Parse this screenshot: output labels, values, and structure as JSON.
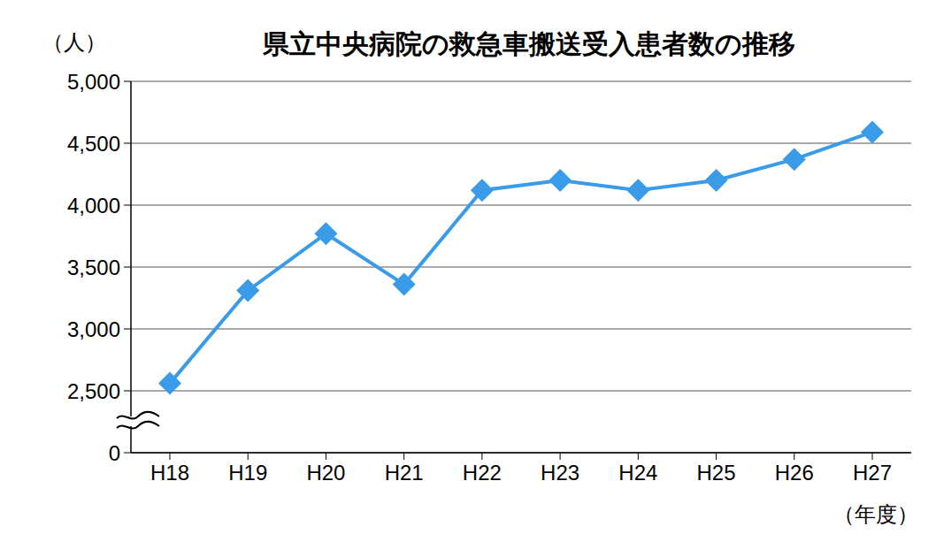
{
  "chart_data": {
    "type": "line",
    "title": "県立中央病院の救急車搬送受入患者数の推移",
    "y_label": "（人）",
    "x_label": "（年度）",
    "categories": [
      "H18",
      "H19",
      "H20",
      "H21",
      "H22",
      "H23",
      "H24",
      "H25",
      "H26",
      "H27"
    ],
    "values": [
      2560,
      3310,
      3770,
      3360,
      4120,
      4200,
      4120,
      4200,
      4370,
      4590
    ],
    "color": "#3a9be8",
    "marker": "diamond",
    "ylim": [
      0,
      5000
    ],
    "yticks": [
      0,
      {
        "value": 2500,
        "label": "2,500"
      },
      {
        "value": 3000,
        "label": "3,000"
      },
      {
        "value": 3500,
        "label": "3,500"
      },
      {
        "value": 4000,
        "label": "4,000"
      },
      {
        "value": 4500,
        "label": "4,500"
      },
      {
        "value": 5000,
        "label": "5,000"
      }
    ],
    "grid": true
  }
}
